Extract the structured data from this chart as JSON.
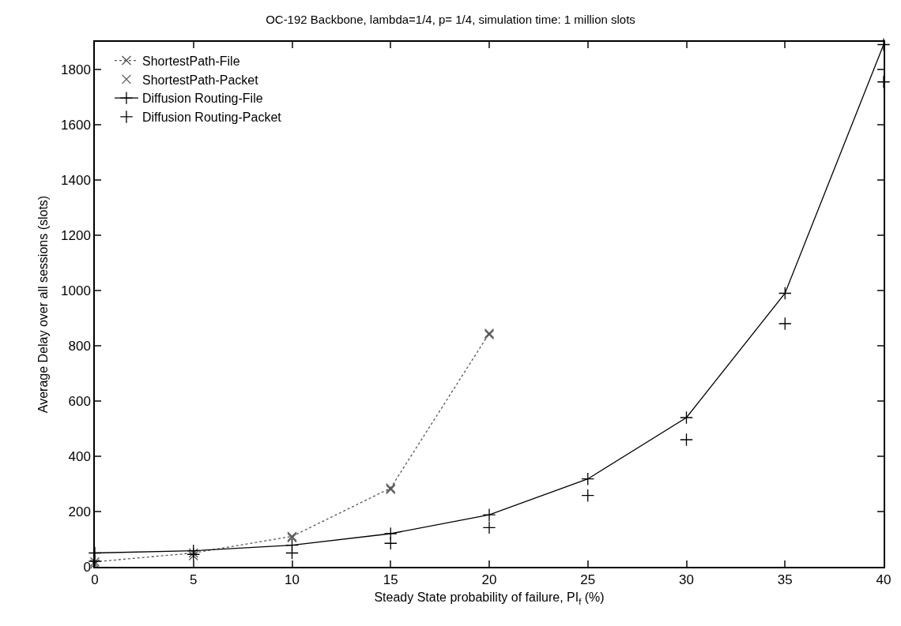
{
  "chart_data": {
    "type": "line",
    "title": "OC-192 Backbone, lambda=1/4, p= 1/4, simulation time: 1 million slots",
    "xlabel": "Steady State probability of failure, PI$_{f}$ (%)",
    "ylabel": "Average Delay over all sessions (slots)",
    "xlim": [
      0,
      40
    ],
    "xticks": [
      0,
      5,
      10,
      15,
      20,
      25,
      30,
      35,
      40
    ],
    "ylim": [
      0,
      1900
    ],
    "yticks": [
      0,
      200,
      400,
      600,
      800,
      1000,
      1200,
      1400,
      1600,
      1800
    ],
    "grid": false,
    "legend": "top left",
    "series": [
      {
        "name": "ShortestPath-File",
        "color": "#555555",
        "marker": "cross",
        "line_style": "dotted",
        "x": [
          0,
          5,
          10,
          15,
          20
        ],
        "values": [
          18,
          50,
          110,
          285,
          845
        ]
      },
      {
        "name": "ShortestPath-Packet",
        "color": "#555555",
        "type": "scatter",
        "marker": "cross",
        "x": [
          0,
          5,
          10,
          15,
          20
        ],
        "values": [
          10,
          40,
          105,
          280,
          840
        ]
      },
      {
        "name": "Diffusion Routing-File",
        "color": "#000000",
        "marker": "plus",
        "line_style": "solid",
        "x": [
          0,
          5,
          10,
          15,
          20,
          25,
          30,
          35,
          40
        ],
        "values": [
          50,
          58,
          78,
          120,
          188,
          318,
          540,
          990,
          1890
        ]
      },
      {
        "name": "Diffusion Routing-Packet",
        "color": "#000000",
        "type": "scatter",
        "marker": "plus",
        "x": [
          0,
          5,
          10,
          15,
          20,
          25,
          30,
          35,
          40
        ],
        "values": [
          20,
          45,
          50,
          85,
          142,
          258,
          460,
          880,
          1755
        ]
      }
    ]
  }
}
